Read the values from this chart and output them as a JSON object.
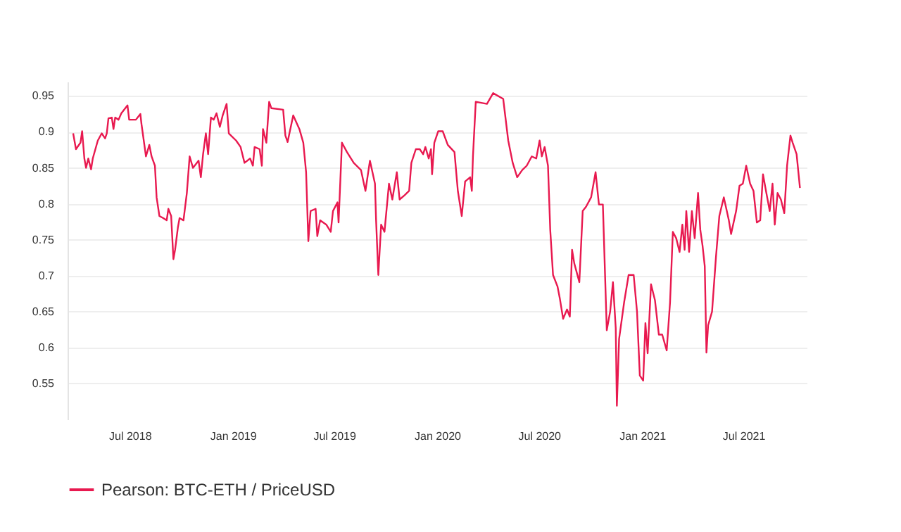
{
  "chart_data": {
    "type": "line",
    "xlim": [
      "2018-03-12",
      "2021-10-22"
    ],
    "ylim": [
      0.5,
      0.97
    ],
    "xticks": [
      {
        "value": "2018-07-01",
        "label": "Jul 2018"
      },
      {
        "value": "2019-01-01",
        "label": "Jan 2019"
      },
      {
        "value": "2019-07-01",
        "label": "Jul 2019"
      },
      {
        "value": "2020-01-01",
        "label": "Jan 2020"
      },
      {
        "value": "2020-07-01",
        "label": "Jul 2020"
      },
      {
        "value": "2021-01-01",
        "label": "Jan 2021"
      },
      {
        "value": "2021-07-01",
        "label": "Jul 2021"
      }
    ],
    "yticks": [
      0.55,
      0.6,
      0.65,
      0.7,
      0.75,
      0.8,
      0.85,
      0.9,
      0.95
    ],
    "grid": "y",
    "legend": "bottom",
    "marker": "none",
    "line_style": "solid",
    "series": [
      {
        "name": "Pearson: BTC-ETH / PriceUSD",
        "color": "#e8194f",
        "x": [
          "2018-03-22",
          "2018-03-27",
          "2018-04-04",
          "2018-04-07",
          "2018-04-11",
          "2018-04-14",
          "2018-04-18",
          "2018-04-23",
          "2018-04-26",
          "2018-05-05",
          "2018-05-12",
          "2018-05-18",
          "2018-05-21",
          "2018-05-24",
          "2018-05-30",
          "2018-06-02",
          "2018-06-05",
          "2018-06-11",
          "2018-06-16",
          "2018-06-27",
          "2018-06-30",
          "2018-07-12",
          "2018-07-20",
          "2018-07-22",
          "2018-07-30",
          "2018-08-05",
          "2018-08-09",
          "2018-08-15",
          "2018-08-18",
          "2018-08-23",
          "2018-08-30",
          "2018-09-05",
          "2018-09-08",
          "2018-09-13",
          "2018-09-17",
          "2018-09-20",
          "2018-09-25",
          "2018-09-28",
          "2018-10-05",
          "2018-10-11",
          "2018-10-16",
          "2018-10-22",
          "2018-11-01",
          "2018-11-05",
          "2018-11-09",
          "2018-11-14",
          "2018-11-18",
          "2018-11-23",
          "2018-11-28",
          "2018-12-03",
          "2018-12-09",
          "2018-12-14",
          "2018-12-21",
          "2018-12-25",
          "2019-01-07",
          "2019-01-15",
          "2019-01-22",
          "2019-02-01",
          "2019-02-06",
          "2019-02-09",
          "2019-02-18",
          "2019-02-22",
          "2019-02-24",
          "2019-03-02",
          "2019-03-07",
          "2019-03-11",
          "2019-04-01",
          "2019-04-05",
          "2019-04-09",
          "2019-04-13",
          "2019-04-19",
          "2019-04-30",
          "2019-05-07",
          "2019-05-12",
          "2019-05-16",
          "2019-05-20",
          "2019-05-29",
          "2019-06-01",
          "2019-06-06",
          "2019-06-17",
          "2019-06-25",
          "2019-06-29",
          "2019-07-07",
          "2019-07-09",
          "2019-07-15",
          "2019-07-24",
          "2019-08-05",
          "2019-08-18",
          "2019-08-26",
          "2019-09-03",
          "2019-09-12",
          "2019-09-14",
          "2019-09-18",
          "2019-09-23",
          "2019-09-29",
          "2019-10-07",
          "2019-10-13",
          "2019-10-21",
          "2019-10-26",
          "2019-11-04",
          "2019-11-12",
          "2019-11-16",
          "2019-11-24",
          "2019-12-01",
          "2019-12-07",
          "2019-12-11",
          "2019-12-17",
          "2019-12-21",
          "2019-12-23",
          "2019-12-27",
          "2020-01-03",
          "2020-01-11",
          "2020-01-20",
          "2020-02-01",
          "2020-02-07",
          "2020-02-14",
          "2020-02-20",
          "2020-02-29",
          "2020-03-03",
          "2020-03-05",
          "2020-03-10",
          "2020-03-30",
          "2020-04-10",
          "2020-04-28",
          "2020-05-07",
          "2020-05-15",
          "2020-05-23",
          "2020-06-01",
          "2020-06-09",
          "2020-06-18",
          "2020-06-26",
          "2020-07-02",
          "2020-07-06",
          "2020-07-11",
          "2020-07-17",
          "2020-07-21",
          "2020-07-26",
          "2020-08-03",
          "2020-08-07",
          "2020-08-13",
          "2020-08-20",
          "2020-08-25",
          "2020-08-29",
          "2020-09-02",
          "2020-09-11",
          "2020-09-17",
          "2020-09-23",
          "2020-10-02",
          "2020-10-10",
          "2020-10-16",
          "2020-10-23",
          "2020-10-30",
          "2020-11-05",
          "2020-11-10",
          "2020-11-15",
          "2020-11-17",
          "2020-11-21",
          "2020-11-30",
          "2020-12-08",
          "2020-12-17",
          "2020-12-23",
          "2020-12-28",
          "2021-01-03",
          "2021-01-07",
          "2021-01-11",
          "2021-01-17",
          "2021-01-24",
          "2021-01-31",
          "2021-02-06",
          "2021-02-14",
          "2021-02-20",
          "2021-02-25",
          "2021-03-03",
          "2021-03-09",
          "2021-03-14",
          "2021-03-18",
          "2021-03-21",
          "2021-03-26",
          "2021-03-31",
          "2021-04-05",
          "2021-04-11",
          "2021-04-15",
          "2021-04-19",
          "2021-04-23",
          "2021-04-26",
          "2021-04-29",
          "2021-05-06",
          "2021-05-13",
          "2021-05-19",
          "2021-05-27",
          "2021-06-05",
          "2021-06-09",
          "2021-06-18",
          "2021-06-24",
          "2021-06-30",
          "2021-07-06",
          "2021-07-13",
          "2021-07-19",
          "2021-07-25",
          "2021-07-31",
          "2021-08-05",
          "2021-08-11",
          "2021-08-17",
          "2021-08-22",
          "2021-08-26",
          "2021-08-31",
          "2021-09-06",
          "2021-09-12",
          "2021-09-17",
          "2021-09-23",
          "2021-09-27",
          "2021-10-04",
          "2021-10-10"
        ],
        "values": [
          0.898,
          0.876,
          0.885,
          0.901,
          0.863,
          0.85,
          0.863,
          0.848,
          0.863,
          0.888,
          0.898,
          0.891,
          0.898,
          0.919,
          0.92,
          0.904,
          0.92,
          0.917,
          0.926,
          0.937,
          0.917,
          0.917,
          0.925,
          0.911,
          0.866,
          0.882,
          0.866,
          0.853,
          0.809,
          0.783,
          0.78,
          0.777,
          0.793,
          0.783,
          0.723,
          0.736,
          0.767,
          0.78,
          0.777,
          0.815,
          0.866,
          0.85,
          0.86,
          0.837,
          0.869,
          0.898,
          0.869,
          0.92,
          0.917,
          0.926,
          0.907,
          0.923,
          0.939,
          0.898,
          0.888,
          0.879,
          0.857,
          0.863,
          0.853,
          0.879,
          0.876,
          0.853,
          0.904,
          0.885,
          0.942,
          0.933,
          0.931,
          0.895,
          0.886,
          0.901,
          0.923,
          0.904,
          0.885,
          0.844,
          0.748,
          0.79,
          0.793,
          0.755,
          0.777,
          0.771,
          0.761,
          0.79,
          0.802,
          0.774,
          0.885,
          0.872,
          0.857,
          0.847,
          0.818,
          0.86,
          0.828,
          0.777,
          0.701,
          0.771,
          0.761,
          0.828,
          0.806,
          0.844,
          0.806,
          0.812,
          0.818,
          0.857,
          0.876,
          0.876,
          0.869,
          0.879,
          0.863,
          0.876,
          0.841,
          0.885,
          0.901,
          0.901,
          0.882,
          0.872,
          0.818,
          0.783,
          0.831,
          0.837,
          0.818,
          0.866,
          0.942,
          0.939,
          0.954,
          0.946,
          0.888,
          0.857,
          0.837,
          0.847,
          0.853,
          0.866,
          0.863,
          0.888,
          0.866,
          0.879,
          0.853,
          0.764,
          0.701,
          0.685,
          0.669,
          0.64,
          0.653,
          0.643,
          0.736,
          0.717,
          0.691,
          0.79,
          0.796,
          0.809,
          0.844,
          0.799,
          0.799,
          0.624,
          0.65,
          0.691,
          0.627,
          0.519,
          0.612,
          0.663,
          0.701,
          0.701,
          0.65,
          0.561,
          0.554,
          0.634,
          0.592,
          0.688,
          0.666,
          0.618,
          0.618,
          0.596,
          0.663,
          0.761,
          0.752,
          0.733,
          0.771,
          0.736,
          0.79,
          0.733,
          0.79,
          0.752,
          0.815,
          0.764,
          0.742,
          0.713,
          0.593,
          0.631,
          0.65,
          0.726,
          0.783,
          0.809,
          0.777,
          0.758,
          0.79,
          0.825,
          0.828,
          0.853,
          0.828,
          0.818,
          0.774,
          0.777,
          0.841,
          0.815,
          0.79,
          0.828,
          0.771,
          0.815,
          0.806,
          0.787,
          0.853,
          0.895,
          0.885,
          0.869,
          0.822
        ]
      }
    ]
  }
}
